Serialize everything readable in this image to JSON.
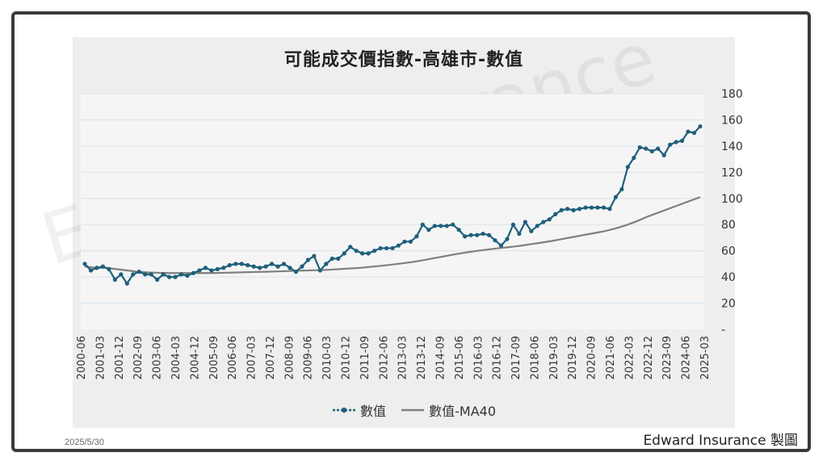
{
  "footer": {
    "date": "2025/5/30",
    "credit": "Edward Insurance 製圖"
  },
  "watermark": {
    "text": "Edward Insurance"
  },
  "colors": {
    "series": "#1f5f7a",
    "ma": "#7f7f7f",
    "panel": "#eeeeee",
    "plot": "#f5f5f5",
    "grid": "#d6e4f0"
  },
  "chart_data": {
    "type": "line",
    "title": "可能成交價指數-高雄市-數值",
    "y_axis_position": "right",
    "ylim": [
      0,
      180
    ],
    "yticks": [
      0,
      20,
      40,
      60,
      80,
      100,
      120,
      140,
      160,
      180
    ],
    "ytick_labels": [
      "-",
      "20",
      "40",
      "60",
      "80",
      "100",
      "120",
      "140",
      "160",
      "180"
    ],
    "x_tick_labels": [
      "2000-06",
      "2001-03",
      "2001-12",
      "2002-09",
      "2003-06",
      "2004-03",
      "2004-12",
      "2005-09",
      "2006-06",
      "2007-03",
      "2007-12",
      "2008-09",
      "2009-06",
      "2010-03",
      "2010-12",
      "2011-09",
      "2012-06",
      "2013-03",
      "2013-12",
      "2014-09",
      "2015-06",
      "2016-03",
      "2016-12",
      "2017-09",
      "2018-06",
      "2019-03",
      "2019-12",
      "2020-09",
      "2021-06",
      "2022-03",
      "2022-12",
      "2023-09",
      "2024-06",
      "2025-03"
    ],
    "grid": "horizontal",
    "legend": {
      "position": "bottom"
    },
    "series": [
      {
        "name": "數值",
        "marker": "circle",
        "values": [
          50,
          45,
          47,
          48,
          46,
          38,
          42,
          35,
          42,
          44,
          42,
          42,
          38,
          42,
          40,
          40,
          42,
          41,
          43,
          45,
          47,
          45,
          46,
          47,
          49,
          50,
          50,
          49,
          48,
          47,
          48,
          50,
          48,
          50,
          47,
          44,
          48,
          53,
          56,
          45,
          50,
          54,
          54,
          58,
          63,
          60,
          58,
          58,
          60,
          62,
          62,
          62,
          64,
          67,
          67,
          71,
          80,
          76,
          79,
          79,
          79,
          80,
          76,
          71,
          72,
          72,
          73,
          72,
          68,
          64,
          69,
          80,
          73,
          82,
          75,
          79,
          82,
          84,
          88,
          91,
          92,
          91,
          92,
          93,
          93,
          93,
          93,
          92,
          101,
          107,
          124,
          131,
          139,
          138,
          136,
          138,
          133,
          141,
          143,
          144,
          151,
          150,
          155
        ]
      },
      {
        "name": "數值-MA40",
        "marker": "none",
        "values": [
          48,
          47,
          47,
          46,
          45,
          44,
          43.5,
          43.2,
          43,
          43,
          43,
          43,
          43,
          43.2,
          43.4,
          43.6,
          43.8,
          44,
          44.2,
          44.5,
          44.8,
          45,
          45.2,
          45.5,
          46,
          46.5,
          47,
          47.8,
          48.6,
          49.5,
          50.5,
          51.6,
          53,
          54.5,
          56,
          57.5,
          58.8,
          60,
          61,
          62,
          62.8,
          63.8,
          65,
          66.2,
          67.5,
          69,
          70.5,
          72,
          73.5,
          75,
          77,
          79.5,
          82.5,
          86,
          89,
          92,
          95,
          98,
          101
        ]
      }
    ]
  }
}
